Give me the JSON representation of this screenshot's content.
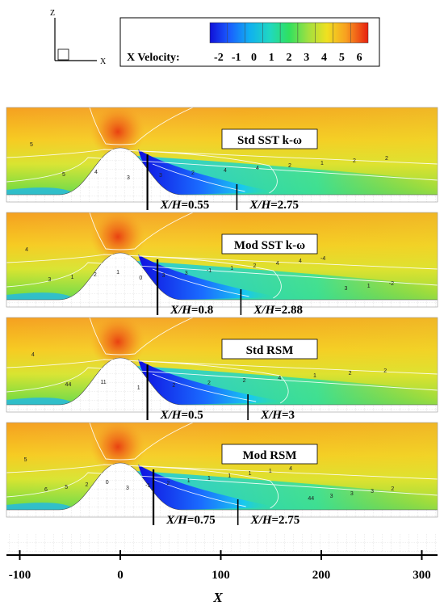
{
  "axes_triad": {
    "z_label": "Z",
    "x_label": "X"
  },
  "colorbar": {
    "label": "X Velocity:",
    "ticks": [
      "-2",
      "-1",
      "0",
      "1",
      "2",
      "3",
      "4",
      "5",
      "6"
    ],
    "colors": [
      "#1010d8",
      "#1a5cff",
      "#10b0f0",
      "#20d8c0",
      "#30e060",
      "#a0e040",
      "#f0e020",
      "#f8a020",
      "#f05018",
      "#e82010"
    ]
  },
  "panels": [
    {
      "title": "Std SST k-ω",
      "cut1": {
        "prefix": "X/H",
        "value": "=0.55",
        "x": 27
      },
      "cut2": {
        "prefix": "X/H",
        "value": "=2.75",
        "x": 116
      },
      "contour_labels": [
        "5",
        "5",
        "4",
        "3",
        "3",
        "2",
        "4",
        "4",
        "2",
        "1",
        "2",
        "2"
      ]
    },
    {
      "title": "Mod SST k-ω",
      "cut1": {
        "prefix": "X/H",
        "value": "=0.8",
        "x": 37
      },
      "cut2": {
        "prefix": "X/H",
        "value": "=2.88",
        "x": 120
      },
      "contour_labels": [
        "4",
        "3",
        "1",
        "2",
        "1",
        "0",
        "3",
        "3",
        "-1",
        "1",
        "2",
        "4",
        "4",
        "-4",
        "3",
        "1",
        "-2"
      ]
    },
    {
      "title": "Std RSM",
      "cut1": {
        "prefix": "X/H",
        "value": "=0.5",
        "x": 27
      },
      "cut2": {
        "prefix": "X/H",
        "value": "=3",
        "x": 127
      },
      "contour_labels": [
        "4",
        "44",
        "11",
        "1",
        "2",
        "2",
        "2",
        "4",
        "1",
        "2",
        "2"
      ]
    },
    {
      "title": "Mod RSM",
      "cut1": {
        "prefix": "X/H",
        "value": "=0.75",
        "x": 33
      },
      "cut2": {
        "prefix": "X/H",
        "value": "=2.75",
        "x": 117
      },
      "contour_labels": [
        "5",
        "6",
        "5",
        "2",
        "0",
        "3",
        "-1",
        "2",
        "1",
        "1",
        "1",
        "1",
        "1",
        "4",
        "44",
        "3",
        "3",
        "3",
        "2"
      ]
    }
  ],
  "x_axis": {
    "label": "X",
    "ticks": [
      {
        "label": "-100",
        "value": -100
      },
      {
        "label": "0",
        "value": 0
      },
      {
        "label": "100",
        "value": 100
      },
      {
        "label": "200",
        "value": 200
      },
      {
        "label": "300",
        "value": 300
      }
    ]
  }
}
